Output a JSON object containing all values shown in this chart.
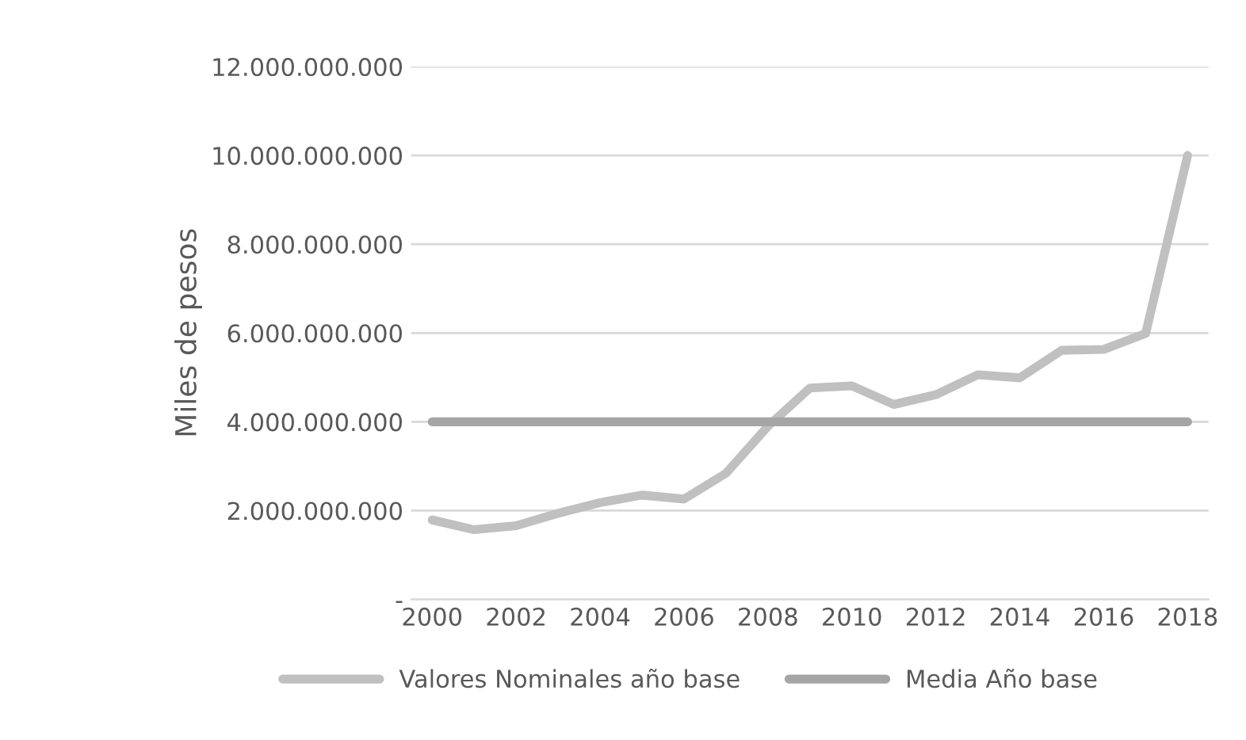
{
  "chart_data": {
    "type": "line",
    "ylabel": "Miles de pesos",
    "x": [
      2000,
      2001,
      2002,
      2003,
      2004,
      2005,
      2006,
      2007,
      2008,
      2009,
      2010,
      2011,
      2012,
      2013,
      2014,
      2015,
      2016,
      2017,
      2018
    ],
    "series": [
      {
        "name": "Valores Nominales año base",
        "color": "#c0c0c0",
        "values": [
          1790000000.0,
          1570000000.0,
          1660000000.0,
          1940000000.0,
          2180000000.0,
          2350000000.0,
          2260000000.0,
          2840000000.0,
          3900000000.0,
          4760000000.0,
          4810000000.0,
          4390000000.0,
          4610000000.0,
          5060000000.0,
          4990000000.0,
          5610000000.0,
          5630000000.0,
          5990000000.0,
          10000000000.0
        ]
      },
      {
        "name": "Media Año base",
        "color": "#a5a5a5",
        "values": [
          4000000000.0,
          4000000000.0,
          4000000000.0,
          4000000000.0,
          4000000000.0,
          4000000000.0,
          4000000000.0,
          4000000000.0,
          4000000000.0,
          4000000000.0,
          4000000000.0,
          4000000000.0,
          4000000000.0,
          4000000000.0,
          4000000000.0,
          4000000000.0,
          4000000000.0,
          4000000000.0,
          4000000000.0
        ]
      }
    ],
    "xlim": [
      1999.5,
      2018.5
    ],
    "xticks": [
      2000,
      2002,
      2004,
      2006,
      2008,
      2010,
      2012,
      2014,
      2016,
      2018
    ],
    "ylim": [
      0,
      12000000000
    ],
    "yticks": [
      {
        "value": 0,
        "label": "-"
      },
      {
        "value": 2000000000,
        "label": "2.000.000.000"
      },
      {
        "value": 4000000000,
        "label": "4.000.000.000"
      },
      {
        "value": 6000000000,
        "label": "6.000.000.000"
      },
      {
        "value": 8000000000,
        "label": "8.000.000.000"
      },
      {
        "value": 10000000000,
        "label": "10.000.000.000"
      },
      {
        "value": 12000000000,
        "label": "12.000.000.000"
      }
    ],
    "grid": "y",
    "legend": "bottom",
    "marker": "none",
    "line_style": "solid"
  }
}
